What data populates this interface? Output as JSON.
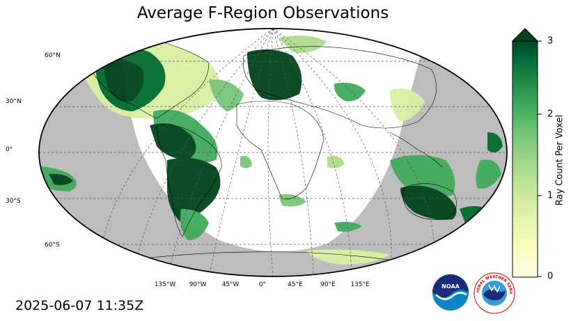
{
  "title": "Average F-Region Observations",
  "timestamp": "2025-06-07 11:35Z",
  "colors": {
    "ocean_night": "#bdbdbd",
    "day_region": "#ffffff",
    "high": "#00441b",
    "mid": "#41ab5d",
    "low": "#d9f0a3",
    "faint": "#ffffe5"
  },
  "lat_labels": [
    "60°N",
    "30°N",
    "0°",
    "30°S",
    "60°S"
  ],
  "lon_labels": [
    "135°W",
    "90°W",
    "45°W",
    "0°",
    "45°E",
    "90°E",
    "135°E"
  ],
  "colorbar": {
    "label": "Ray Count Per Voxel",
    "ticks": [
      "3",
      "2",
      "1",
      "0"
    ],
    "min": 0,
    "max": 3,
    "extend": "max",
    "colormap": "YlGn"
  },
  "logos": {
    "noaa_text": "NOAA",
    "nws_text": "NATIONAL WEATHER SERVICE"
  }
}
